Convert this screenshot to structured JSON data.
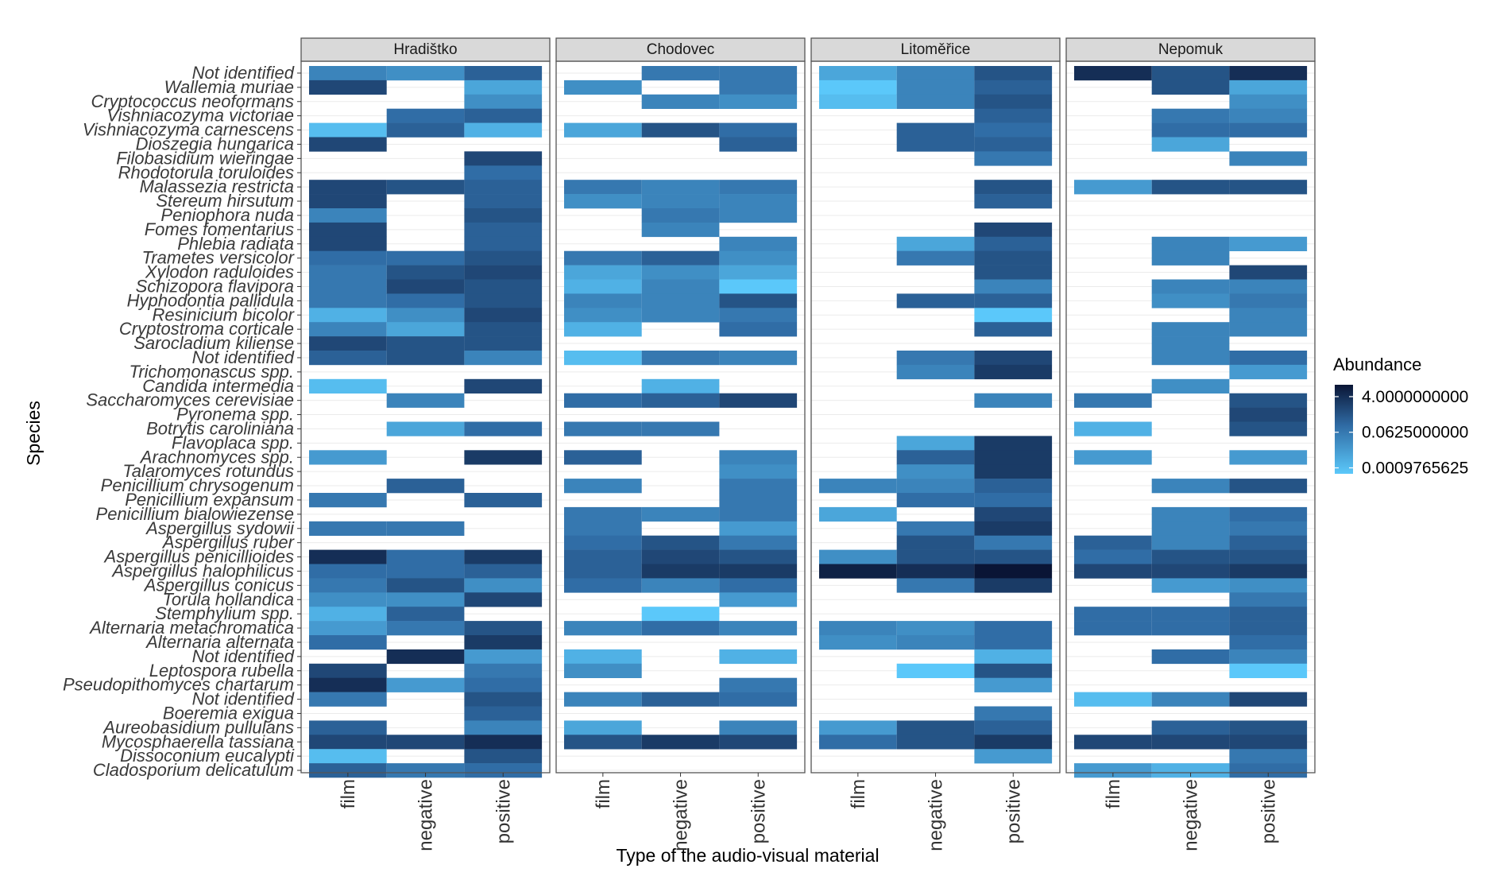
{
  "chart_data": {
    "type": "heatmap",
    "facets": [
      "Hradištko",
      "Chodovec",
      "Litoměřice",
      "Nepomuk"
    ],
    "categories": [
      "film",
      "negative",
      "positive"
    ],
    "xlabel": "Type of the audio-visual material",
    "ylabel": "Species",
    "species": [
      "Not identified",
      "Wallemia   muriae",
      "Cryptococcus   neoformans",
      "Vishniacozyma   victoriae",
      "Vishniacozyma   carnescens",
      "Dioszegia   hungarica",
      "Filobasidium   wieringae",
      "Rhodotorula   toruloides",
      "Malassezia   restricta",
      "Stereum   hirsutum",
      "Peniophora   nuda",
      "Fomes   fomentarius",
      "Phlebia   radiata",
      "Trametes   versicolor",
      "Xylodon   raduloides",
      "Schizopora   flavipora",
      "Hyphodontia   pallidula",
      "Resinicium   bicolor",
      "Cryptostroma   corticale",
      "Sarocladium   kiliense",
      "Not identified",
      "Trichomonascus   spp.",
      "Candida   intermedia",
      "Saccharomyces   cerevisiae",
      "Pyronema   spp.",
      "Botrytis   caroliniana",
      "Flavoplaca   spp.",
      "Arachnomyces   spp.",
      "Talaromyces   rotundus",
      "Penicillium   chrysogenum",
      "Penicillium   expansum",
      "Penicillium   bialowiezense",
      "Aspergillus   sydowii",
      "Aspergillus   ruber",
      "Aspergillus   penicillioides",
      "Aspergillus   halophilicus",
      "Aspergillus   conicus",
      "Torula   hollandica",
      "Stemphylium   spp.",
      "Alternaria   metachromatica",
      "Alternaria   alternata",
      "Not identified",
      "Leptospora   rubella",
      "Pseudopithomyces   chartarum",
      "Not identified",
      "Boeremia   exigua",
      "Aureobasidium   pullulans",
      "Mycosphaerella   tassiana",
      "Dissoconium   eucalypti",
      "Cladosporium   delicatulum"
    ],
    "value_scale": "log2",
    "log2_abundance": {
      "Hradištko": {
        "film": [
          -5,
          0,
          null,
          null,
          -10,
          0,
          null,
          null,
          0,
          0,
          -5,
          0,
          0,
          -3,
          -4,
          -4,
          -4,
          -9,
          -5,
          0,
          -2,
          null,
          -10,
          null,
          null,
          null,
          null,
          -7,
          null,
          null,
          -4,
          null,
          -4,
          null,
          2,
          -3,
          -4,
          -6,
          -9,
          -7,
          -3,
          null,
          0,
          2,
          -4,
          null,
          -2,
          0,
          -10,
          -2
        ],
        "negative": [
          -6,
          null,
          null,
          -3,
          -2,
          null,
          null,
          null,
          -1,
          null,
          null,
          null,
          null,
          -3,
          -1,
          0,
          -3,
          -6,
          -8,
          -1,
          -1,
          null,
          null,
          -5,
          null,
          -8,
          null,
          null,
          null,
          -2,
          null,
          null,
          -4,
          null,
          -3,
          -3,
          -1,
          -6,
          -2,
          -4,
          null,
          2,
          null,
          -7,
          null,
          null,
          null,
          0,
          null,
          -4
        ],
        "positive": [
          -2,
          -8,
          -6,
          -2,
          -9,
          null,
          0,
          -3,
          -2,
          -2,
          -1,
          -2,
          -2,
          -1,
          0,
          -1,
          -1,
          0,
          -1,
          -1,
          -5,
          null,
          0,
          null,
          null,
          -3,
          null,
          1,
          null,
          null,
          -2,
          null,
          null,
          null,
          1,
          -2,
          -6,
          0,
          null,
          -1,
          1,
          -7,
          -4,
          -3,
          -1,
          -2,
          -5,
          2,
          -1,
          -3
        ]
      },
      "Chodovec": {
        "film": [
          null,
          -6,
          null,
          null,
          -8,
          null,
          null,
          null,
          -4,
          -6,
          null,
          null,
          null,
          -4,
          -8,
          -9,
          -5,
          -6,
          -9,
          null,
          -10,
          null,
          null,
          -3,
          null,
          -4,
          null,
          -2,
          null,
          -5,
          null,
          -4,
          -4,
          -3,
          -2,
          -2,
          -3,
          null,
          null,
          -5,
          null,
          -9,
          -6,
          null,
          -5,
          null,
          -8,
          -1,
          null,
          null
        ],
        "negative": [
          -4,
          null,
          -5,
          null,
          -1,
          null,
          null,
          null,
          -5,
          -5,
          -4,
          -5,
          null,
          -2,
          -6,
          -5,
          -5,
          -5,
          null,
          null,
          -4,
          null,
          -9,
          -2,
          null,
          -4,
          null,
          null,
          null,
          null,
          null,
          -5,
          null,
          -1,
          0,
          1,
          -5,
          null,
          -11,
          -3,
          null,
          null,
          null,
          null,
          -2,
          null,
          null,
          1,
          null,
          null
        ],
        "positive": [
          -4,
          -4,
          -6,
          null,
          -3,
          -2,
          null,
          null,
          -4,
          -5,
          -5,
          null,
          -5,
          -6,
          -8,
          -11,
          -1,
          -4,
          -3,
          null,
          -5,
          null,
          null,
          0,
          null,
          null,
          null,
          -5,
          -6,
          -4,
          -4,
          -4,
          -7,
          -4,
          -1,
          1,
          -3,
          -7,
          null,
          -5,
          null,
          -9,
          null,
          -4,
          -3,
          null,
          -5,
          0,
          null,
          null
        ]
      },
      "Litoměřice": {
        "film": [
          -8,
          -11,
          -10,
          null,
          null,
          null,
          null,
          null,
          null,
          null,
          null,
          null,
          null,
          null,
          null,
          null,
          null,
          null,
          null,
          null,
          null,
          null,
          null,
          null,
          null,
          null,
          null,
          null,
          null,
          -5,
          null,
          -8,
          null,
          null,
          -6,
          3,
          null,
          null,
          null,
          -5,
          -6,
          null,
          null,
          null,
          null,
          null,
          -7,
          -3,
          null,
          null
        ],
        "negative": [
          -5,
          -5,
          -5,
          null,
          -2,
          -2,
          null,
          null,
          null,
          null,
          null,
          null,
          -8,
          -4,
          null,
          null,
          -2,
          null,
          null,
          null,
          -4,
          -5,
          null,
          null,
          null,
          null,
          -8,
          -2,
          -6,
          -5,
          -3,
          null,
          -4,
          -1,
          -1,
          2,
          -4,
          null,
          null,
          -6,
          -5,
          null,
          -11,
          null,
          null,
          null,
          -1,
          -1,
          null,
          null
        ],
        "positive": [
          -1,
          -2,
          -1,
          -2,
          -3,
          -2,
          -4,
          null,
          -1,
          -2,
          null,
          0,
          -2,
          -1,
          -1,
          -5,
          -2,
          -11,
          -2,
          null,
          0,
          1,
          null,
          -5,
          null,
          null,
          1,
          1,
          1,
          -2,
          -3,
          0,
          1,
          -4,
          -1,
          4,
          1,
          null,
          null,
          -3,
          -3,
          -9,
          -1,
          -7,
          null,
          -4,
          -2,
          1,
          -7,
          null
        ]
      },
      "Nepomuk": {
        "film": [
          2,
          null,
          null,
          null,
          null,
          null,
          null,
          null,
          -7,
          null,
          null,
          null,
          null,
          null,
          null,
          null,
          null,
          null,
          null,
          null,
          null,
          null,
          null,
          -4,
          null,
          -9,
          null,
          -7,
          null,
          null,
          null,
          null,
          null,
          -2,
          -3,
          0,
          null,
          null,
          -3,
          -3,
          null,
          null,
          null,
          null,
          -10,
          null,
          null,
          0,
          null,
          -7
        ],
        "negative": [
          -1,
          -1,
          null,
          -4,
          -3,
          -8,
          null,
          null,
          -1,
          null,
          null,
          null,
          -5,
          -5,
          null,
          -5,
          -6,
          null,
          -5,
          -5,
          -5,
          null,
          -6,
          null,
          null,
          null,
          null,
          null,
          null,
          -5,
          null,
          -5,
          -5,
          -5,
          -1,
          0,
          -7,
          null,
          -3,
          -3,
          null,
          -3,
          null,
          null,
          -5,
          null,
          -2,
          0,
          null,
          -9
        ],
        "positive": [
          2,
          -8,
          -6,
          -5,
          -3,
          null,
          -5,
          null,
          -1,
          null,
          null,
          null,
          -7,
          null,
          0,
          -5,
          -4,
          -5,
          -5,
          null,
          -3,
          -7,
          null,
          -1,
          0,
          -1,
          null,
          -7,
          null,
          -1,
          null,
          -3,
          -4,
          -2,
          -1,
          1,
          -6,
          -4,
          -2,
          -2,
          -3,
          -5,
          -11,
          null,
          0,
          null,
          -1,
          0,
          -4,
          -3
        ]
      }
    },
    "legend": {
      "title": "Abundance",
      "labels": [
        "4.0000000000",
        "0.0625000000",
        "0.0009765625"
      ],
      "log2_values": [
        2,
        -4,
        -10
      ],
      "scale_log2_range": [
        -11,
        4
      ],
      "colors": {
        "low": "#5BC8FA",
        "mid": "#2F6AA3",
        "high": "#0A1535"
      }
    },
    "colors": {
      "panel_border": "#555555",
      "strip_fill": "#D9D9D9",
      "grid": "#EBEBEB"
    }
  }
}
